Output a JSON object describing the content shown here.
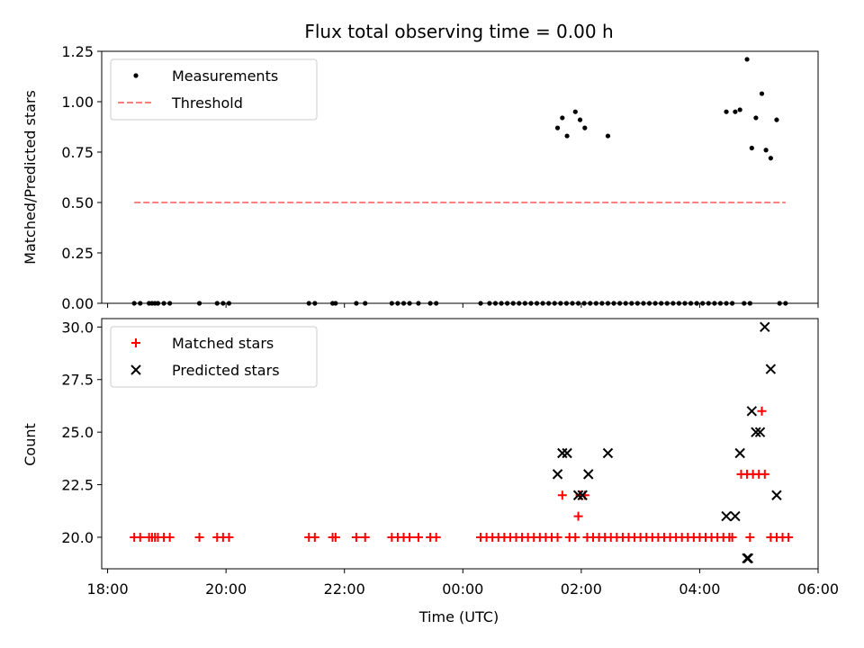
{
  "chart_data": [
    {
      "type": "scatter",
      "title": "Flux total observing time = 0.00 h",
      "ylabel": "Matched/Predicted stars",
      "xlabel": "",
      "xlim": [
        -0.1,
        12.0
      ],
      "ylim": [
        0.0,
        1.25
      ],
      "x_ticks": [
        "18:00",
        "20:00",
        "22:00",
        "00:00",
        "02:00",
        "04:00",
        "06:00"
      ],
      "y_ticks": [
        "0.00",
        "0.25",
        "0.50",
        "0.75",
        "1.00",
        "1.25"
      ],
      "x_tick_labels_visible": false,
      "legend_position": "top-left",
      "threshold": {
        "name": "Threshold",
        "y": 0.5,
        "x_range": [
          0.45,
          11.45
        ],
        "color": "#ff7f7f",
        "style": "dashed"
      },
      "series": [
        {
          "name": "Measurements",
          "color": "#000000",
          "marker": "dot",
          "x": [
            0.45,
            0.55,
            0.7,
            0.75,
            0.8,
            0.85,
            0.95,
            1.05,
            1.55,
            1.85,
            1.95,
            2.05,
            3.4,
            3.5,
            3.8,
            3.85,
            4.2,
            4.35,
            4.8,
            4.9,
            5.0,
            5.1,
            5.25,
            5.45,
            5.55,
            6.3,
            6.45,
            6.55,
            6.65,
            6.75,
            6.85,
            6.95,
            7.05,
            7.15,
            7.25,
            7.35,
            7.45,
            7.55,
            7.65,
            7.75,
            7.85,
            7.95,
            8.05,
            8.15,
            8.25,
            8.35,
            8.45,
            8.55,
            8.65,
            8.75,
            8.85,
            8.95,
            9.05,
            9.15,
            9.25,
            9.35,
            9.45,
            9.55,
            9.65,
            9.75,
            9.85,
            9.95,
            10.05,
            10.15,
            10.25,
            10.35,
            10.45,
            10.55,
            10.75,
            10.85,
            11.35,
            11.45,
            7.6,
            7.68,
            7.76,
            7.9,
            7.98,
            8.06,
            8.45,
            10.45,
            10.6,
            10.68,
            10.8,
            10.88,
            10.95,
            11.05,
            11.12,
            11.2,
            11.3
          ],
          "y": [
            0,
            0,
            0,
            0,
            0,
            0,
            0,
            0,
            0,
            0,
            0,
            0,
            0,
            0,
            0,
            0,
            0,
            0,
            0,
            0,
            0,
            0,
            0,
            0,
            0,
            0,
            0,
            0,
            0,
            0,
            0,
            0,
            0,
            0,
            0,
            0,
            0,
            0,
            0,
            0,
            0,
            0,
            0,
            0,
            0,
            0,
            0,
            0,
            0,
            0,
            0,
            0,
            0,
            0,
            0,
            0,
            0,
            0,
            0,
            0,
            0,
            0,
            0,
            0,
            0,
            0,
            0,
            0,
            0,
            0,
            0,
            0,
            0.87,
            0.92,
            0.83,
            0.95,
            0.91,
            0.87,
            0.83,
            0.95,
            0.95,
            0.96,
            1.21,
            0.77,
            0.92,
            1.04,
            0.76,
            0.72,
            0.91
          ]
        }
      ]
    },
    {
      "type": "scatter",
      "title": "",
      "ylabel": "Count",
      "xlabel": "Time (UTC)",
      "xlim": [
        -0.1,
        12.0
      ],
      "ylim": [
        18.5,
        30.4
      ],
      "x_ticks": [
        "18:00",
        "20:00",
        "22:00",
        "00:00",
        "02:00",
        "04:00",
        "06:00"
      ],
      "y_ticks": [
        "20.0",
        "22.5",
        "25.0",
        "27.5",
        "30.0"
      ],
      "legend_position": "top-left",
      "series": [
        {
          "name": "Matched stars",
          "color": "#ff0000",
          "marker": "plus",
          "x": [
            0.45,
            0.55,
            0.7,
            0.75,
            0.8,
            0.85,
            0.95,
            1.05,
            1.55,
            1.85,
            1.95,
            2.05,
            3.4,
            3.5,
            3.8,
            3.85,
            4.2,
            4.35,
            4.8,
            4.9,
            5.0,
            5.1,
            5.25,
            5.45,
            5.55,
            6.3,
            6.4,
            6.5,
            6.6,
            6.7,
            6.8,
            6.9,
            7.0,
            7.1,
            7.2,
            7.3,
            7.4,
            7.5,
            7.6,
            7.8,
            7.9,
            8.1,
            8.2,
            8.3,
            8.4,
            8.5,
            8.6,
            8.7,
            8.8,
            8.9,
            9.0,
            9.1,
            9.2,
            9.3,
            9.4,
            9.5,
            9.6,
            9.7,
            9.8,
            9.9,
            10.0,
            10.1,
            10.2,
            10.3,
            10.4,
            10.5,
            10.55,
            10.85,
            11.2,
            11.3,
            11.4,
            11.5,
            7.68,
            7.95,
            7.98,
            8.06,
            10.7,
            10.8,
            10.9,
            11.0,
            11.1,
            11.05
          ],
          "y": [
            20,
            20,
            20,
            20,
            20,
            20,
            20,
            20,
            20,
            20,
            20,
            20,
            20,
            20,
            20,
            20,
            20,
            20,
            20,
            20,
            20,
            20,
            20,
            20,
            20,
            20,
            20,
            20,
            20,
            20,
            20,
            20,
            20,
            20,
            20,
            20,
            20,
            20,
            20,
            20,
            20,
            20,
            20,
            20,
            20,
            20,
            20,
            20,
            20,
            20,
            20,
            20,
            20,
            20,
            20,
            20,
            20,
            20,
            20,
            20,
            20,
            20,
            20,
            20,
            20,
            20,
            20,
            20,
            20,
            20,
            20,
            20,
            22,
            21,
            22,
            22,
            23,
            23,
            23,
            23,
            23,
            26
          ]
        },
        {
          "name": "Predicted stars",
          "color": "#000000",
          "marker": "cross",
          "x": [
            7.6,
            7.68,
            7.76,
            7.95,
            8.02,
            8.12,
            8.45,
            10.45,
            10.6,
            10.68,
            10.82,
            10.88,
            10.95,
            11.02,
            11.1,
            11.2,
            11.3,
            10.8
          ],
          "y": [
            23,
            24,
            24,
            22,
            22,
            23,
            24,
            21,
            21,
            24,
            19,
            26,
            25,
            25,
            30,
            28,
            22,
            19
          ]
        }
      ]
    }
  ]
}
